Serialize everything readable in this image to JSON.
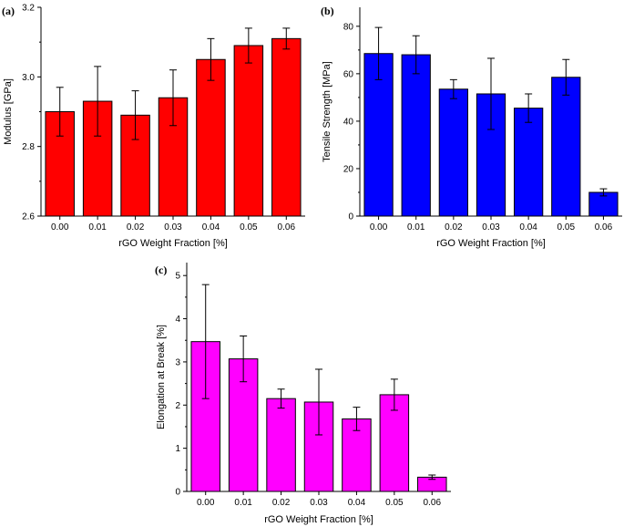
{
  "chart_data": [
    {
      "id": "a",
      "type": "bar",
      "panel_label": "(a)",
      "title": "",
      "xlabel": "rGO Weight Fraction [%]",
      "ylabel": "Modulus [GPa]",
      "categories": [
        "0.00",
        "0.01",
        "0.02",
        "0.03",
        "0.04",
        "0.05",
        "0.06"
      ],
      "values": [
        2.9,
        2.93,
        2.89,
        2.94,
        3.05,
        3.09,
        3.11
      ],
      "errors": [
        0.07,
        0.1,
        0.07,
        0.08,
        0.06,
        0.05,
        0.03
      ],
      "ylim": [
        2.6,
        3.2
      ],
      "yticks": [
        2.6,
        2.8,
        3.0,
        3.2
      ],
      "ytick_labels": [
        "2.6",
        "2.8",
        "3.0",
        "3.2"
      ],
      "color": "#ff0000"
    },
    {
      "id": "b",
      "type": "bar",
      "panel_label": "(b)",
      "title": "",
      "xlabel": "rGO Weight Fraction [%]",
      "ylabel": "Tensile Strength [MPa]",
      "categories": [
        "0.00",
        "0.01",
        "0.02",
        "0.03",
        "0.04",
        "0.05",
        "0.06"
      ],
      "values": [
        68.5,
        68.0,
        53.5,
        51.5,
        45.5,
        58.5,
        10.0
      ],
      "errors": [
        11.0,
        8.0,
        4.0,
        15.0,
        6.0,
        7.5,
        1.5
      ],
      "ylim": [
        0,
        88
      ],
      "yticks": [
        0,
        20,
        40,
        60,
        80
      ],
      "ytick_labels": [
        "0",
        "20",
        "40",
        "60",
        "80"
      ],
      "color": "#0000ff"
    },
    {
      "id": "c",
      "type": "bar",
      "panel_label": "(c)",
      "title": "",
      "xlabel": "rGO Weight Fraction [%]",
      "ylabel": "Elongation at Break [%]",
      "categories": [
        "0.00",
        "0.01",
        "0.02",
        "0.03",
        "0.04",
        "0.05",
        "0.06"
      ],
      "values": [
        3.47,
        3.07,
        2.15,
        2.07,
        1.68,
        2.24,
        0.33
      ],
      "errors": [
        1.32,
        0.53,
        0.22,
        0.76,
        0.27,
        0.36,
        0.05
      ],
      "ylim": [
        0,
        5.3
      ],
      "yticks": [
        0,
        1,
        2,
        3,
        4,
        5
      ],
      "ytick_labels": [
        "0",
        "1",
        "2",
        "3",
        "4",
        "5"
      ],
      "color": "#ff00ff"
    }
  ]
}
